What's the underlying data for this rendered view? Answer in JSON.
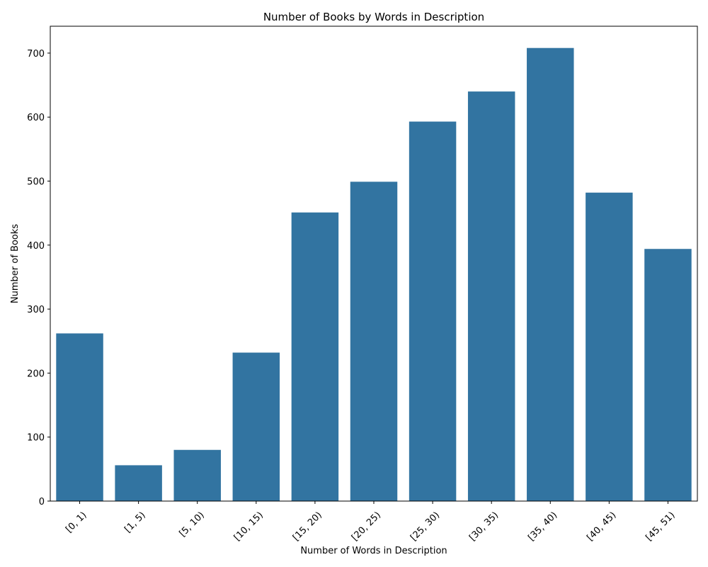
{
  "chart_data": {
    "type": "bar",
    "title": "Number of Books by Words in Description",
    "xlabel": "Number of Words in Description",
    "ylabel": "Number of Books",
    "categories": [
      "[0, 1)",
      "[1, 5)",
      "[5, 10)",
      "[10, 15)",
      "[15, 20)",
      "[20, 25)",
      "[25, 30)",
      "[30, 35)",
      "[35, 40)",
      "[40, 45)",
      "[45, 51)"
    ],
    "values": [
      262,
      56,
      80,
      232,
      451,
      499,
      593,
      640,
      708,
      482,
      394
    ],
    "ylim": [
      0,
      742
    ],
    "yticks": [
      0,
      100,
      200,
      300,
      400,
      500,
      600,
      700
    ],
    "bar_color": "#3274a1",
    "grid": false,
    "legend": "none"
  }
}
